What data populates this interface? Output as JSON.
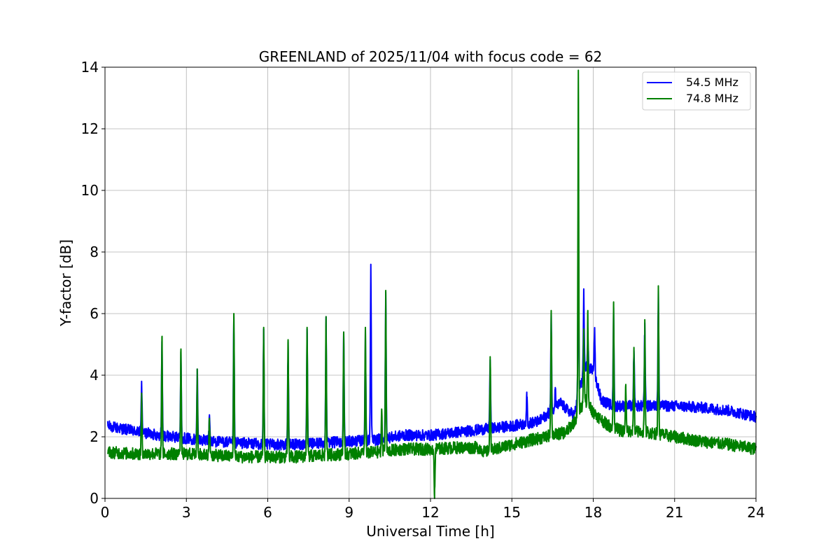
{
  "chart_data": {
    "type": "line",
    "title": "GREENLAND of 2025/11/04 with focus code = 62",
    "xlabel": "Universal Time [h]",
    "ylabel": "Y-factor [dB]",
    "xlim": [
      0,
      24
    ],
    "ylim": [
      0,
      14
    ],
    "xticks": [
      "0",
      "3",
      "6",
      "9",
      "12",
      "15",
      "18",
      "21",
      "24"
    ],
    "yticks": [
      "0",
      "2",
      "4",
      "6",
      "8",
      "10",
      "12",
      "14"
    ],
    "grid": true,
    "legend_position": "top-right",
    "colors": {
      "series_0": "#0000ff",
      "series_1": "#008000"
    },
    "series": [
      {
        "name": "54.5 MHz",
        "color": "#0000ff",
        "noise": 0.18,
        "x": [
          0.1,
          1,
          2,
          3,
          4,
          5,
          6,
          7,
          8,
          9,
          10,
          11,
          12,
          13,
          14,
          15,
          16,
          16.8,
          17,
          17.3,
          17.7,
          18,
          18.3,
          18.7,
          19,
          20,
          21,
          22,
          23,
          24
        ],
        "values": [
          2.35,
          2.2,
          2.05,
          1.95,
          1.85,
          1.8,
          1.75,
          1.75,
          1.8,
          1.85,
          1.9,
          2.05,
          2.05,
          2.15,
          2.25,
          2.35,
          2.5,
          3.1,
          2.9,
          2.7,
          4.3,
          4.2,
          3.2,
          3.0,
          3.0,
          3.0,
          3.0,
          2.95,
          2.85,
          2.65
        ],
        "spikes": [
          [
            1.35,
            3.8
          ],
          [
            2.1,
            5.1
          ],
          [
            2.8,
            4.8
          ],
          [
            3.4,
            4.2
          ],
          [
            3.85,
            2.7
          ],
          [
            4.75,
            5.9
          ],
          [
            5.85,
            5.5
          ],
          [
            6.75,
            5.1
          ],
          [
            7.45,
            5.5
          ],
          [
            8.15,
            5.9
          ],
          [
            8.8,
            5.4
          ],
          [
            9.6,
            5.5
          ],
          [
            9.8,
            7.6
          ],
          [
            10.35,
            6.7
          ],
          [
            14.2,
            4.5
          ],
          [
            15.55,
            3.45
          ],
          [
            16.45,
            6.0
          ],
          [
            16.6,
            3.55
          ],
          [
            17.45,
            9.1
          ],
          [
            17.65,
            6.8
          ],
          [
            17.8,
            5.3
          ],
          [
            18.05,
            5.5
          ],
          [
            18.75,
            6.2
          ],
          [
            19.5,
            4.8
          ],
          [
            19.9,
            5.7
          ],
          [
            20.4,
            6.8
          ]
        ]
      },
      {
        "name": "74.8 MHz",
        "color": "#008000",
        "noise": 0.2,
        "x": [
          0.1,
          1,
          2,
          3,
          4,
          5,
          6,
          7,
          8,
          9,
          10,
          11,
          12,
          13,
          13.8,
          14,
          15,
          16,
          17,
          17.3,
          17.7,
          18,
          18.5,
          19,
          20,
          21,
          22,
          23,
          24
        ],
        "values": [
          1.5,
          1.45,
          1.45,
          1.45,
          1.4,
          1.35,
          1.35,
          1.35,
          1.4,
          1.45,
          1.5,
          1.6,
          1.6,
          1.65,
          1.65,
          1.5,
          1.75,
          1.95,
          2.15,
          2.5,
          3.2,
          2.8,
          2.4,
          2.2,
          2.15,
          2.0,
          1.85,
          1.75,
          1.6
        ],
        "spikes": [
          [
            1.35,
            3.4
          ],
          [
            2.1,
            5.25
          ],
          [
            2.8,
            4.85
          ],
          [
            3.4,
            4.2
          ],
          [
            3.85,
            2.6
          ],
          [
            4.75,
            6.0
          ],
          [
            5.85,
            5.55
          ],
          [
            6.75,
            5.15
          ],
          [
            7.45,
            5.55
          ],
          [
            8.15,
            5.9
          ],
          [
            8.8,
            5.4
          ],
          [
            9.6,
            5.55
          ],
          [
            10.35,
            6.75
          ],
          [
            10.2,
            2.9
          ],
          [
            12.15,
            0.0
          ],
          [
            14.2,
            4.6
          ],
          [
            16.45,
            6.1
          ],
          [
            17.45,
            13.9
          ],
          [
            17.65,
            5.5
          ],
          [
            17.8,
            6.1
          ],
          [
            18.75,
            6.35
          ],
          [
            19.2,
            3.7
          ],
          [
            19.5,
            4.9
          ],
          [
            19.9,
            5.8
          ],
          [
            20.4,
            6.9
          ]
        ]
      }
    ]
  }
}
